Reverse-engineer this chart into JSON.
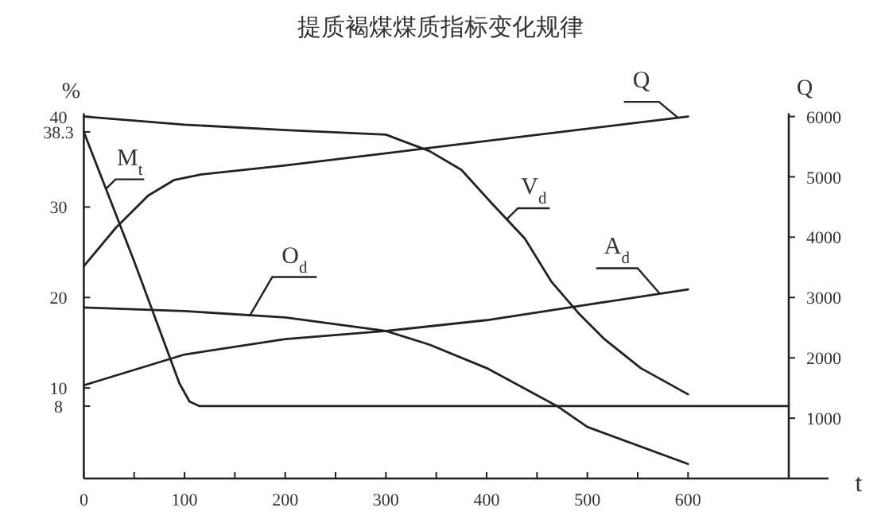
{
  "chart_data": {
    "type": "line",
    "title": "提质褐煤煤质指标变化规律",
    "xlabel": "t",
    "ylabel": "%",
    "y2label": "Q",
    "xlim": [
      0,
      700
    ],
    "xticks": [
      0,
      {
        "value": 50,
        "label": null
      },
      100,
      {
        "value": 150,
        "label": null
      },
      200,
      {
        "value": 250,
        "label": null
      },
      300,
      {
        "value": 350,
        "label": null
      },
      400,
      {
        "value": 450,
        "label": null
      },
      500,
      {
        "value": 550,
        "label": null
      },
      600
    ],
    "ylim": [
      0,
      40
    ],
    "yticks": [
      8,
      10,
      20,
      30,
      38.3,
      40
    ],
    "y2lim": [
      0,
      6000
    ],
    "y2ticks": [
      1000,
      2000,
      3000,
      4000,
      5000,
      6000
    ],
    "grid": false,
    "legend": false,
    "marker": "none",
    "line_style": "solid",
    "series": [
      {
        "name": "M$_{t}$",
        "color": "#222222",
        "x": [
          0,
          50,
          95,
          105,
          115,
          700
        ],
        "values": [
          38.3,
          24.0,
          10.5,
          8.5,
          8,
          8
        ]
      },
      {
        "name": "O$_{d}$",
        "color": "#222222",
        "x": [
          0,
          100,
          200,
          300,
          343,
          400,
          470,
          500,
          600
        ],
        "values": [
          18.9,
          18.5,
          17.8,
          16.3,
          14.8,
          12.2,
          8.0,
          5.7,
          1.6
        ]
      },
      {
        "name": "V$_{d}$",
        "color": "#222222",
        "x": [
          0,
          100,
          200,
          300,
          343,
          375,
          406,
          438,
          464,
          491,
          517,
          553,
          600
        ],
        "values": [
          40.0,
          39.1,
          38.5,
          38.0,
          36.2,
          34.1,
          30.3,
          26.5,
          21.8,
          18.3,
          15.4,
          12.2,
          9.3
        ]
      },
      {
        "name": "A$_{d}$",
        "color": "#222222",
        "x": [
          0,
          100,
          200,
          300,
          400,
          500,
          600
        ],
        "values": [
          10.3,
          13.7,
          15.4,
          16.3,
          17.5,
          19.2,
          20.9
        ]
      },
      {
        "name": "Q",
        "color": "#222222",
        "axis": "y2",
        "x": [
          0,
          32,
          64,
          90,
          117,
          200,
          300,
          343,
          600
        ],
        "values": [
          3520,
          4160,
          4690,
          4950,
          5040,
          5190,
          5390,
          5480,
          6000
        ]
      }
    ]
  }
}
